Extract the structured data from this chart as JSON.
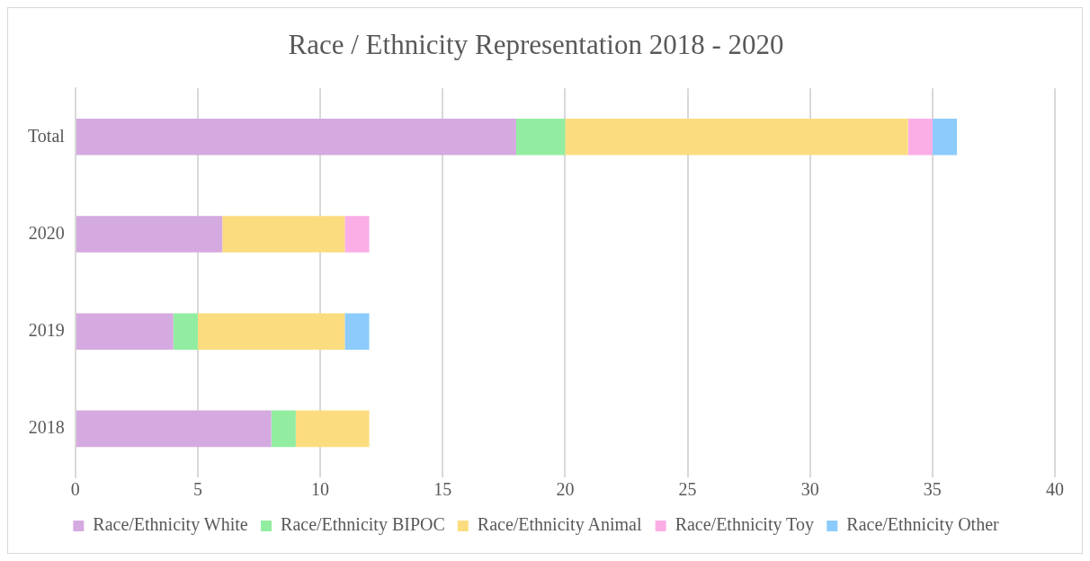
{
  "chart_data": {
    "type": "bar",
    "orientation": "horizontal",
    "stacked": true,
    "title": "Race / Ethnicity Representation 2018 - 2020",
    "categories": [
      "Total",
      "2020",
      "2019",
      "2018"
    ],
    "series": [
      {
        "name": "Race/Ethnicity White",
        "color": "#d5aae0",
        "values": [
          18,
          6,
          4,
          8
        ]
      },
      {
        "name": "Race/Ethnicity BIPOC",
        "color": "#92eda0",
        "values": [
          2,
          0,
          1,
          1
        ]
      },
      {
        "name": "Race/Ethnicity Animal",
        "color": "#fbdd80",
        "values": [
          14,
          5,
          6,
          3
        ]
      },
      {
        "name": "Race/Ethnicity Toy",
        "color": "#fbaee5",
        "values": [
          1,
          1,
          0,
          0
        ]
      },
      {
        "name": "Race/Ethnicity Other",
        "color": "#8ccbfc",
        "values": [
          1,
          0,
          1,
          0
        ]
      }
    ],
    "xlim": [
      0,
      40
    ],
    "xticks": [
      0,
      5,
      10,
      15,
      20,
      25,
      30,
      35,
      40
    ],
    "grid": "x",
    "legend": "bottom"
  }
}
